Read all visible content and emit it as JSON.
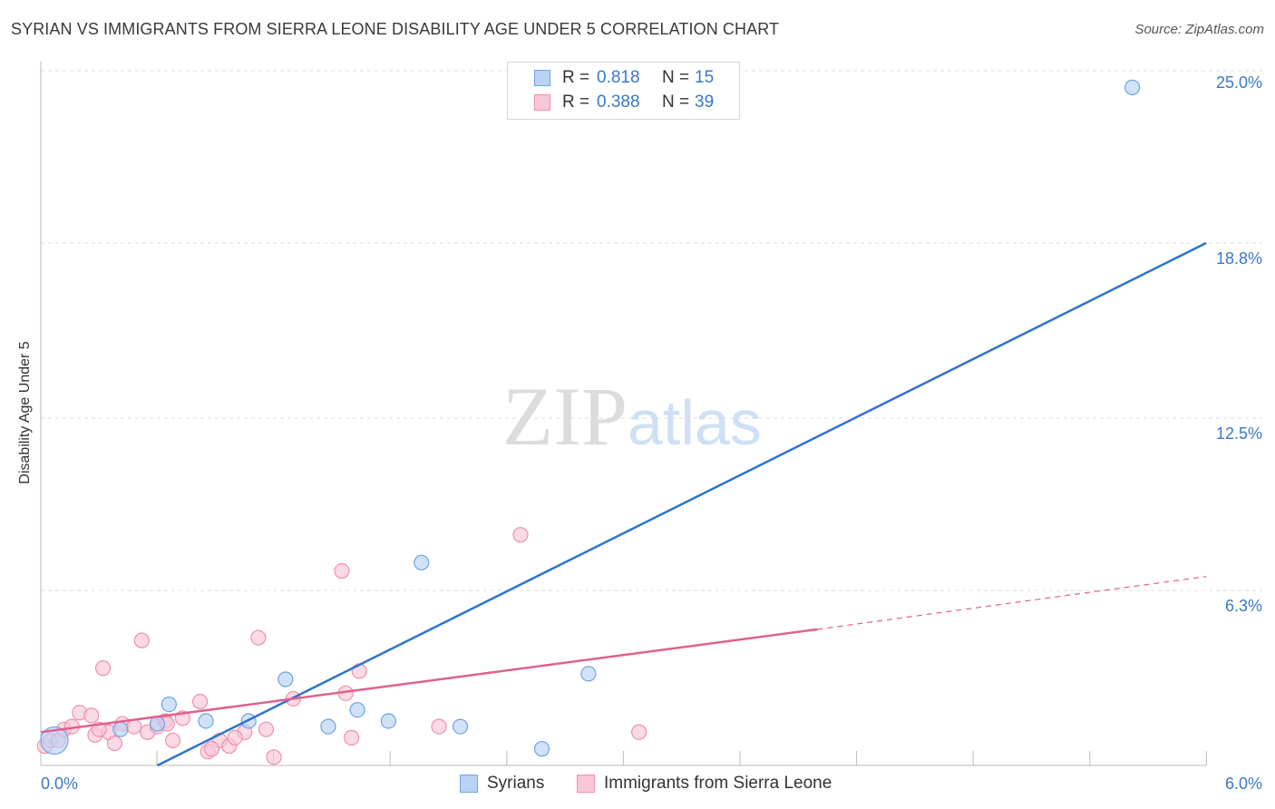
{
  "chart_data": {
    "type": "scatter",
    "title": "SYRIAN VS IMMIGRANTS FROM SIERRA LEONE DISABILITY AGE UNDER 5 CORRELATION CHART",
    "source": "Source: ZipAtlas.com",
    "xlabel": "",
    "ylabel": "Disability Age Under 5",
    "xlim": [
      0.0,
      6.0
    ],
    "ylim": [
      0.0,
      25.0
    ],
    "x_tick_labels": [
      "0.0%",
      "6.0%"
    ],
    "y_ticks": [
      6.3,
      12.5,
      18.8,
      25.0
    ],
    "y_tick_labels": [
      "6.3%",
      "12.5%",
      "18.8%",
      "25.0%"
    ],
    "grid": true,
    "watermark": "ZIPatlas",
    "legend_position": "bottom",
    "series": [
      {
        "name": "Syrians",
        "color": "#6fa3e6",
        "fill": "#b9d3f5",
        "line_color": "#2b74cc",
        "R": "0.818",
        "N": "15",
        "points": [
          {
            "x": 0.07,
            "y": 0.9,
            "large": true
          },
          {
            "x": 0.41,
            "y": 1.3
          },
          {
            "x": 0.6,
            "y": 1.5
          },
          {
            "x": 0.66,
            "y": 2.2
          },
          {
            "x": 0.85,
            "y": 1.6
          },
          {
            "x": 1.07,
            "y": 1.6
          },
          {
            "x": 1.26,
            "y": 3.1
          },
          {
            "x": 1.48,
            "y": 1.4
          },
          {
            "x": 1.63,
            "y": 2.0
          },
          {
            "x": 1.79,
            "y": 1.6
          },
          {
            "x": 1.96,
            "y": 7.3
          },
          {
            "x": 2.16,
            "y": 1.4
          },
          {
            "x": 2.58,
            "y": 0.6
          },
          {
            "x": 2.82,
            "y": 3.3
          },
          {
            "x": 5.62,
            "y": 24.4
          }
        ],
        "trend": {
          "x0": 0.6,
          "y0": 0.0,
          "x1": 6.0,
          "y1": 18.8
        }
      },
      {
        "name": "Immigrants from Sierra Leone",
        "color": "#f08fb0",
        "fill": "#f8c6d6",
        "line_color": "#e0608e",
        "R": "0.388",
        "N": "39",
        "points": [
          {
            "x": 0.02,
            "y": 0.7
          },
          {
            "x": 0.05,
            "y": 0.9
          },
          {
            "x": 0.09,
            "y": 0.9
          },
          {
            "x": 0.12,
            "y": 1.3
          },
          {
            "x": 0.16,
            "y": 1.4
          },
          {
            "x": 0.2,
            "y": 1.9
          },
          {
            "x": 0.26,
            "y": 1.8
          },
          {
            "x": 0.28,
            "y": 1.1
          },
          {
            "x": 0.32,
            "y": 3.5
          },
          {
            "x": 0.35,
            "y": 1.2
          },
          {
            "x": 0.3,
            "y": 1.3
          },
          {
            "x": 0.38,
            "y": 0.8
          },
          {
            "x": 0.42,
            "y": 1.5
          },
          {
            "x": 0.48,
            "y": 1.4
          },
          {
            "x": 0.52,
            "y": 4.5
          },
          {
            "x": 0.55,
            "y": 1.2
          },
          {
            "x": 0.6,
            "y": 1.4
          },
          {
            "x": 0.64,
            "y": 1.6
          },
          {
            "x": 0.68,
            "y": 0.9
          },
          {
            "x": 0.73,
            "y": 1.7
          },
          {
            "x": 0.65,
            "y": 1.5
          },
          {
            "x": 0.82,
            "y": 2.3
          },
          {
            "x": 0.86,
            "y": 0.5
          },
          {
            "x": 0.92,
            "y": 0.9
          },
          {
            "x": 0.97,
            "y": 0.7
          },
          {
            "x": 0.88,
            "y": 0.6
          },
          {
            "x": 1.05,
            "y": 1.2
          },
          {
            "x": 1.0,
            "y": 1.0
          },
          {
            "x": 1.12,
            "y": 4.6
          },
          {
            "x": 1.16,
            "y": 1.3
          },
          {
            "x": 1.2,
            "y": 0.3
          },
          {
            "x": 1.3,
            "y": 2.4
          },
          {
            "x": 1.55,
            "y": 7.0
          },
          {
            "x": 1.57,
            "y": 2.6
          },
          {
            "x": 1.6,
            "y": 1.0
          },
          {
            "x": 1.64,
            "y": 3.4
          },
          {
            "x": 2.05,
            "y": 1.4
          },
          {
            "x": 2.47,
            "y": 8.3
          },
          {
            "x": 3.08,
            "y": 1.2
          }
        ],
        "trend": {
          "x0": 0.0,
          "y0": 1.2,
          "x1": 4.0,
          "y1": 4.9
        },
        "trend_dashed": {
          "x0": 4.0,
          "y0": 4.9,
          "x1": 6.0,
          "y1": 6.8
        }
      }
    ]
  },
  "legend_labels": {
    "r_label": "R =",
    "n_label": "N ="
  }
}
